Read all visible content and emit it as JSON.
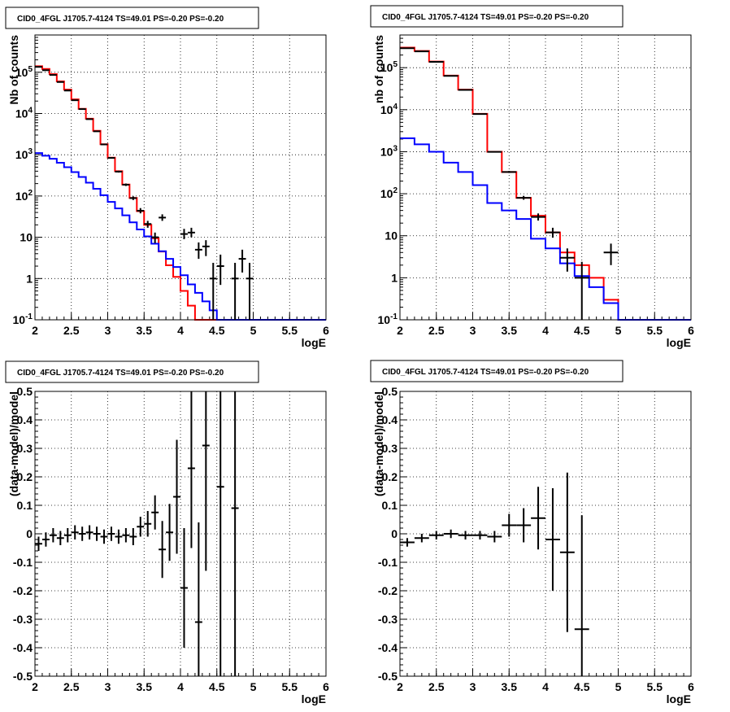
{
  "chart_data": [
    {
      "type": "line",
      "title": "CID0_4FGL J1705.7-4124 TS=49.01 PS=-0.20 PS=-0.20",
      "xlabel": "logE",
      "ylabel": "Nb of counts",
      "xlim": [
        2,
        6
      ],
      "ylim": [
        0.1,
        800000
      ],
      "yscale": "log",
      "grid": true,
      "xticks": [
        "2",
        "2.5",
        "3",
        "3.5",
        "4",
        "4.5",
        "5",
        "5.5",
        "6"
      ],
      "yticks": [
        "10^-1",
        "1",
        "10",
        "10^2",
        "10^3",
        "10^4",
        "10^5"
      ],
      "bin_edges": [
        2.0,
        2.1,
        2.2,
        2.3,
        2.4,
        2.5,
        2.6,
        2.7,
        2.8,
        2.9,
        3.0,
        3.1,
        3.2,
        3.3,
        3.4,
        3.5,
        3.6,
        3.7,
        3.8,
        3.9,
        4.0,
        4.1,
        4.2,
        4.3,
        4.4,
        4.5,
        4.6,
        4.7,
        4.8,
        4.9,
        5.0,
        5.1,
        5.2,
        5.3,
        5.4,
        5.5,
        5.6,
        5.7,
        5.8,
        5.9,
        6.0
      ],
      "series": [
        {
          "color": "#ff0000",
          "style": "step",
          "values": [
            140000,
            120000,
            90000,
            60000,
            38000,
            22000,
            13000,
            7500,
            3800,
            1800,
            850,
            400,
            190,
            90,
            43,
            20,
            9.5,
            4.5,
            2.1,
            1.1,
            0.5,
            0.22,
            0.1,
            0.1,
            0.1,
            0.1,
            0.1,
            0.1,
            0.1,
            0.1,
            0.1,
            0.1,
            0.1,
            0.1,
            0.1,
            0.1,
            0.1,
            0.1,
            0.1,
            0.1
          ]
        },
        {
          "color": "#0000ff",
          "style": "step",
          "values": [
            1100,
            950,
            800,
            640,
            500,
            380,
            290,
            210,
            150,
            105,
            72,
            50,
            34,
            23,
            15.5,
            10.5,
            7,
            4.6,
            3,
            1.9,
            1.2,
            0.72,
            0.45,
            0.28,
            0.17,
            0.1,
            0.1,
            0.1,
            0.1,
            0.1,
            0.1,
            0.1,
            0.1,
            0.1,
            0.1,
            0.1,
            0.1,
            0.1,
            0.1,
            0.1
          ]
        }
      ],
      "data_points": [
        {
          "x": 2.05,
          "y": 135000,
          "xerr": 0.05,
          "ylo": 134000,
          "yhi": 136000
        },
        {
          "x": 2.15,
          "y": 112000,
          "xerr": 0.05,
          "ylo": 111000,
          "yhi": 113000
        },
        {
          "x": 2.25,
          "y": 86000,
          "xerr": 0.05,
          "ylo": 85000,
          "yhi": 87000
        },
        {
          "x": 2.35,
          "y": 58000,
          "xerr": 0.05,
          "ylo": 57000,
          "yhi": 59000
        },
        {
          "x": 2.45,
          "y": 36000,
          "xerr": 0.05,
          "ylo": 35500,
          "yhi": 36500
        },
        {
          "x": 2.55,
          "y": 21000,
          "xerr": 0.05,
          "ylo": 20700,
          "yhi": 21300
        },
        {
          "x": 2.65,
          "y": 12800,
          "xerr": 0.05,
          "ylo": 12600,
          "yhi": 13000
        },
        {
          "x": 2.75,
          "y": 7300,
          "xerr": 0.05,
          "ylo": 7200,
          "yhi": 7400
        },
        {
          "x": 2.85,
          "y": 3700,
          "xerr": 0.05,
          "ylo": 3640,
          "yhi": 3760
        },
        {
          "x": 2.95,
          "y": 1780,
          "xerr": 0.05,
          "ylo": 1740,
          "yhi": 1820
        },
        {
          "x": 3.05,
          "y": 840,
          "xerr": 0.05,
          "ylo": 810,
          "yhi": 870
        },
        {
          "x": 3.15,
          "y": 390,
          "xerr": 0.05,
          "ylo": 370,
          "yhi": 410
        },
        {
          "x": 3.25,
          "y": 188,
          "xerr": 0.05,
          "ylo": 175,
          "yhi": 201
        },
        {
          "x": 3.35,
          "y": 89,
          "xerr": 0.05,
          "ylo": 80,
          "yhi": 98
        },
        {
          "x": 3.45,
          "y": 44,
          "xerr": 0.05,
          "ylo": 38,
          "yhi": 51
        },
        {
          "x": 3.55,
          "y": 21,
          "xerr": 0.05,
          "ylo": 17,
          "yhi": 25
        },
        {
          "x": 3.65,
          "y": 10,
          "xerr": 0.05,
          "ylo": 7.2,
          "yhi": 13
        },
        {
          "x": 3.75,
          "y": 30,
          "xerr": 0.05,
          "ylo": 25,
          "yhi": 36
        },
        {
          "x": 4.05,
          "y": 12,
          "xerr": 0.05,
          "ylo": 9,
          "yhi": 16
        },
        {
          "x": 4.15,
          "y": 13,
          "xerr": 0.05,
          "ylo": 10,
          "yhi": 17
        },
        {
          "x": 4.25,
          "y": 5,
          "xerr": 0.05,
          "ylo": 3,
          "yhi": 7.5
        },
        {
          "x": 4.35,
          "y": 6,
          "xerr": 0.05,
          "ylo": 3.5,
          "yhi": 8.5
        },
        {
          "x": 4.45,
          "y": 1,
          "xerr": 0.05,
          "ylo": 0.1,
          "yhi": 2.4
        },
        {
          "x": 4.55,
          "y": 2,
          "xerr": 0.05,
          "ylo": 0.7,
          "yhi": 3.8
        },
        {
          "x": 4.75,
          "y": 1,
          "xerr": 0.05,
          "ylo": 0.1,
          "yhi": 2.4
        },
        {
          "x": 4.85,
          "y": 3,
          "xerr": 0.05,
          "ylo": 1.4,
          "yhi": 5
        },
        {
          "x": 4.95,
          "y": 1,
          "xerr": 0.05,
          "ylo": 0.1,
          "yhi": 2.4
        }
      ]
    },
    {
      "type": "line",
      "title": "CID0_4FGL J1705.7-4124 TS=49.01 PS=-0.20 PS=-0.20",
      "xlabel": "logE",
      "ylabel": "nb of counts",
      "xlim": [
        2,
        6
      ],
      "ylim": [
        0.1,
        600000
      ],
      "yscale": "log",
      "grid": true,
      "xticks": [
        "2",
        "2.5",
        "3",
        "3.5",
        "4",
        "4.5",
        "5",
        "5.5",
        "6"
      ],
      "yticks": [
        "10^-1",
        "1",
        "10",
        "10^2",
        "10^3",
        "10^4",
        "10^5"
      ],
      "bin_edges": [
        2.0,
        2.2,
        2.4,
        2.6,
        2.8,
        3.0,
        3.2,
        3.4,
        3.6,
        3.8,
        4.0,
        4.2,
        4.4,
        4.6,
        4.8,
        5.0,
        5.2,
        5.4,
        5.6,
        5.8,
        6.0
      ],
      "series": [
        {
          "color": "#ff0000",
          "style": "step",
          "values": [
            300000,
            250000,
            140000,
            65000,
            30000,
            8000,
            1000,
            330,
            80,
            30,
            12,
            4,
            2,
            1,
            0.3,
            0.1,
            0.1,
            0.1,
            0.1,
            0.1
          ]
        },
        {
          "color": "#0000ff",
          "style": "step",
          "values": [
            2100,
            1500,
            1000,
            550,
            330,
            160,
            60,
            40,
            25,
            8.5,
            5,
            2.2,
            1.1,
            0.6,
            0.25,
            0.1,
            0.1,
            0.1,
            0.1,
            0.1
          ]
        }
      ],
      "data_points": [
        {
          "x": 2.1,
          "y": 290000,
          "xerr": 0.1,
          "ylo": 288000,
          "yhi": 292000
        },
        {
          "x": 2.3,
          "y": 245000,
          "xerr": 0.1,
          "ylo": 243000,
          "yhi": 247000
        },
        {
          "x": 2.5,
          "y": 138000,
          "xerr": 0.1,
          "ylo": 137000,
          "yhi": 139000
        },
        {
          "x": 2.7,
          "y": 64000,
          "xerr": 0.1,
          "ylo": 63500,
          "yhi": 64500
        },
        {
          "x": 2.9,
          "y": 29500,
          "xerr": 0.1,
          "ylo": 29200,
          "yhi": 29800
        },
        {
          "x": 3.1,
          "y": 7900,
          "xerr": 0.1,
          "ylo": 7800,
          "yhi": 8000
        },
        {
          "x": 3.3,
          "y": 990,
          "xerr": 0.1,
          "ylo": 960,
          "yhi": 1020
        },
        {
          "x": 3.5,
          "y": 330,
          "xerr": 0.1,
          "ylo": 312,
          "yhi": 348
        },
        {
          "x": 3.7,
          "y": 80,
          "xerr": 0.1,
          "ylo": 72,
          "yhi": 89
        },
        {
          "x": 3.9,
          "y": 28,
          "xerr": 0.1,
          "ylo": 23,
          "yhi": 34
        },
        {
          "x": 4.1,
          "y": 12,
          "xerr": 0.1,
          "ylo": 9,
          "yhi": 15.5
        },
        {
          "x": 4.3,
          "y": 3,
          "xerr": 0.1,
          "ylo": 1.4,
          "yhi": 5
        },
        {
          "x": 4.5,
          "y": 1,
          "xerr": 0.1,
          "ylo": 0.1,
          "yhi": 2.4
        },
        {
          "x": 4.9,
          "y": 4,
          "xerr": 0.1,
          "ylo": 2,
          "yhi": 6.5
        }
      ]
    },
    {
      "type": "scatter",
      "title": "CID0_4FGL J1705.7-4124 TS=49.01 PS=-0.20 PS=-0.20",
      "xlabel": "logE",
      "ylabel": "(data-model)/model",
      "xlim": [
        2,
        6
      ],
      "ylim": [
        -0.5,
        0.5
      ],
      "grid": true,
      "xticks": [
        "2",
        "2.5",
        "3",
        "3.5",
        "4",
        "4.5",
        "5",
        "5.5",
        "6"
      ],
      "yticks": [
        "-0.5",
        "-0.4",
        "-0.3",
        "-0.2",
        "-0.1",
        "0",
        "0.1",
        "0.2",
        "0.3",
        "0.4",
        "0.5"
      ],
      "data_points": [
        {
          "x": 2.05,
          "y": -0.035,
          "xerr": 0.05,
          "yerr": 0.025
        },
        {
          "x": 2.15,
          "y": -0.02,
          "xerr": 0.05,
          "yerr": 0.025
        },
        {
          "x": 2.25,
          "y": -0.005,
          "xerr": 0.05,
          "yerr": 0.025
        },
        {
          "x": 2.35,
          "y": -0.015,
          "xerr": 0.05,
          "yerr": 0.025
        },
        {
          "x": 2.45,
          "y": -0.005,
          "xerr": 0.05,
          "yerr": 0.025
        },
        {
          "x": 2.55,
          "y": 0.005,
          "xerr": 0.05,
          "yerr": 0.025
        },
        {
          "x": 2.65,
          "y": 0.0,
          "xerr": 0.05,
          "yerr": 0.025
        },
        {
          "x": 2.75,
          "y": 0.005,
          "xerr": 0.05,
          "yerr": 0.025
        },
        {
          "x": 2.85,
          "y": 0.0,
          "xerr": 0.05,
          "yerr": 0.025
        },
        {
          "x": 2.95,
          "y": -0.01,
          "xerr": 0.05,
          "yerr": 0.025
        },
        {
          "x": 3.05,
          "y": 0.0,
          "xerr": 0.05,
          "yerr": 0.025
        },
        {
          "x": 3.15,
          "y": -0.01,
          "xerr": 0.05,
          "yerr": 0.025
        },
        {
          "x": 3.25,
          "y": -0.005,
          "xerr": 0.05,
          "yerr": 0.025
        },
        {
          "x": 3.35,
          "y": -0.01,
          "xerr": 0.05,
          "yerr": 0.03
        },
        {
          "x": 3.45,
          "y": 0.025,
          "xerr": 0.05,
          "yerr": 0.035
        },
        {
          "x": 3.55,
          "y": 0.035,
          "xerr": 0.05,
          "yerr": 0.045
        },
        {
          "x": 3.65,
          "y": 0.075,
          "xerr": 0.05,
          "yerr": 0.06
        },
        {
          "x": 3.75,
          "y": -0.055,
          "xerr": 0.05,
          "yerr": 0.1
        },
        {
          "x": 3.85,
          "y": 0.005,
          "xerr": 0.05,
          "yerr": 0.1
        },
        {
          "x": 3.95,
          "y": 0.13,
          "xerr": 0.05,
          "yerr": 0.2
        },
        {
          "x": 4.05,
          "y": -0.19,
          "xerr": 0.05,
          "yerr": 0.21
        },
        {
          "x": 4.15,
          "y": 0.23,
          "xerr": 0.05,
          "yerr": 0.28
        },
        {
          "x": 4.25,
          "y": -0.31,
          "xerr": 0.05,
          "yerr": 0.35
        },
        {
          "x": 4.35,
          "y": 0.31,
          "xerr": 0.05,
          "yerr": 0.44
        },
        {
          "x": 4.55,
          "y": 0.165,
          "xerr": 0.05,
          "yerr": 0.75
        },
        {
          "x": 4.75,
          "y": 0.09,
          "xerr": 0.05,
          "yerr": 0.8
        }
      ]
    },
    {
      "type": "scatter",
      "title": "CID0_4FGL J1705.7-4124 TS=49.01 PS=-0.20 PS=-0.20",
      "xlabel": "logE",
      "ylabel": "(data-model)/model",
      "xlim": [
        2,
        6
      ],
      "ylim": [
        -0.5,
        0.5
      ],
      "grid": true,
      "xticks": [
        "2",
        "2.5",
        "3",
        "3.5",
        "4",
        "4.5",
        "5",
        "5.5",
        "6"
      ],
      "yticks": [
        "-0.5",
        "-0.4",
        "-0.3",
        "-0.2",
        "-0.1",
        "0",
        "0.1",
        "0.2",
        "0.3",
        "0.4",
        "0.5"
      ],
      "data_points": [
        {
          "x": 2.1,
          "y": -0.03,
          "xerr": 0.1,
          "yerr": 0.015
        },
        {
          "x": 2.3,
          "y": -0.015,
          "xerr": 0.1,
          "yerr": 0.015
        },
        {
          "x": 2.5,
          "y": -0.005,
          "xerr": 0.1,
          "yerr": 0.015
        },
        {
          "x": 2.7,
          "y": 0.0,
          "xerr": 0.1,
          "yerr": 0.015
        },
        {
          "x": 2.9,
          "y": -0.005,
          "xerr": 0.1,
          "yerr": 0.015
        },
        {
          "x": 3.1,
          "y": -0.005,
          "xerr": 0.1,
          "yerr": 0.015
        },
        {
          "x": 3.3,
          "y": -0.01,
          "xerr": 0.1,
          "yerr": 0.02
        },
        {
          "x": 3.5,
          "y": 0.03,
          "xerr": 0.1,
          "yerr": 0.04
        },
        {
          "x": 3.7,
          "y": 0.03,
          "xerr": 0.1,
          "yerr": 0.06
        },
        {
          "x": 3.9,
          "y": 0.055,
          "xerr": 0.1,
          "yerr": 0.11
        },
        {
          "x": 4.1,
          "y": -0.02,
          "xerr": 0.1,
          "yerr": 0.18
        },
        {
          "x": 4.3,
          "y": -0.065,
          "xerr": 0.1,
          "yerr": 0.28
        },
        {
          "x": 4.5,
          "y": -0.335,
          "xerr": 0.1,
          "yerr": 0.4
        }
      ]
    }
  ]
}
